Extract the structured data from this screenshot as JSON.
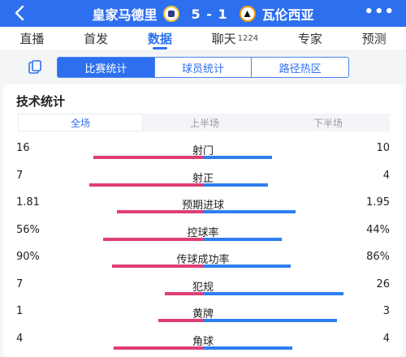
{
  "header": {
    "home_team": "皇家马德里",
    "score": "5 - 1",
    "away_team": "瓦伦西亚",
    "more_label": "•••"
  },
  "nav": {
    "tabs": [
      {
        "label": "直播",
        "count": ""
      },
      {
        "label": "首发",
        "count": ""
      },
      {
        "label": "数据",
        "count": ""
      },
      {
        "label": "聊天",
        "count": "1224"
      },
      {
        "label": "专家",
        "count": ""
      },
      {
        "label": "预测",
        "count": ""
      }
    ],
    "active_index": 2
  },
  "subtabs": [
    "比赛统计",
    "球员统计",
    "路径热区"
  ],
  "section_title": "技术统计",
  "periods": [
    "全场",
    "上半场",
    "下半场"
  ],
  "colors": {
    "accent": "#2d6fee",
    "home_bar": "#e03d78",
    "away_bar": "#2d7ff0"
  },
  "stats": [
    {
      "name": "射门",
      "home": "16",
      "away": "10",
      "home_share": 0.615,
      "away_share": 0.385
    },
    {
      "name": "射正",
      "home": "7",
      "away": "4",
      "home_share": 0.636,
      "away_share": 0.364
    },
    {
      "name": "预期进球",
      "home": "1.81",
      "away": "1.95",
      "home_share": 0.481,
      "away_share": 0.519
    },
    {
      "name": "控球率",
      "home": "56%",
      "away": "44%",
      "home_share": 0.56,
      "away_share": 0.44
    },
    {
      "name": "传球成功率",
      "home": "90%",
      "away": "86%",
      "home_share": 0.511,
      "away_share": 0.489
    },
    {
      "name": "犯规",
      "home": "7",
      "away": "26",
      "home_share": 0.212,
      "away_share": 0.788
    },
    {
      "name": "黄牌",
      "home": "1",
      "away": "3",
      "home_share": 0.25,
      "away_share": 0.75
    },
    {
      "name": "角球",
      "home": "4",
      "away": "4",
      "home_share": 0.5,
      "away_share": 0.5
    }
  ]
}
